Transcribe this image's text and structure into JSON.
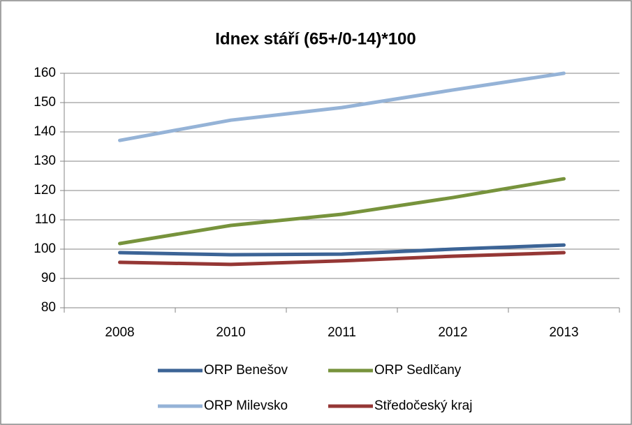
{
  "chart_data": {
    "type": "line",
    "title": "Idnex stáří (65+/0-14)*100",
    "categories": [
      "2008",
      "2010",
      "2011",
      "2012",
      "2013"
    ],
    "series": [
      {
        "name": "ORP Benešov",
        "color": "#3c6496",
        "values": [
          98.8,
          98.1,
          98.3,
          100.0,
          101.4
        ]
      },
      {
        "name": "ORP Sedlčany",
        "color": "#77933c",
        "values": [
          101.9,
          108.1,
          111.9,
          117.6,
          124.0
        ]
      },
      {
        "name": "ORP Milevsko",
        "color": "#95b3d7",
        "values": [
          137.1,
          144.0,
          148.3,
          154.3,
          160.0
        ]
      },
      {
        "name": "Středočeský kraj",
        "color": "#953735",
        "values": [
          95.5,
          94.8,
          96.0,
          97.6,
          98.8
        ]
      }
    ],
    "ylim": [
      80,
      160
    ],
    "yticks": [
      80,
      90,
      100,
      110,
      120,
      130,
      140,
      150,
      160
    ],
    "grid": true
  }
}
